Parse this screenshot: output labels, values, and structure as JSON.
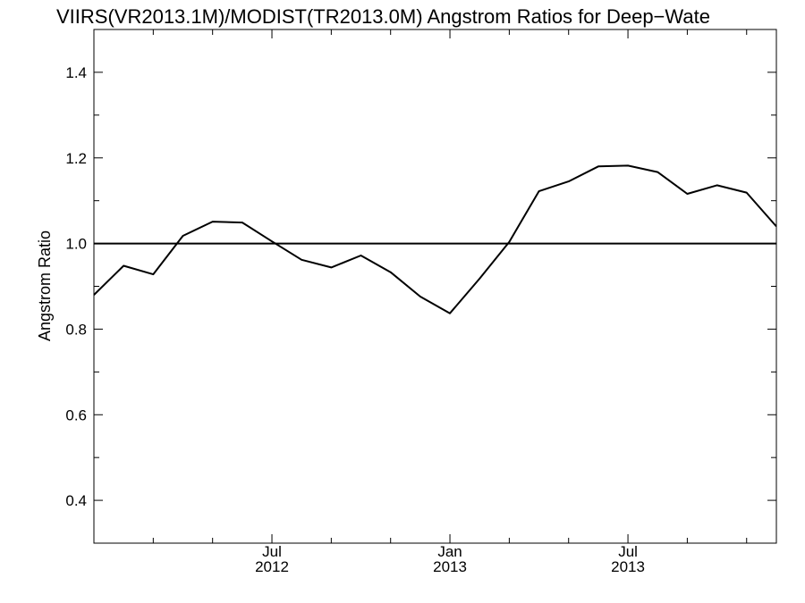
{
  "chart_data": {
    "type": "line",
    "title": "VIIRS(VR2013.1M)/MODIST(TR2013.0M)  Angstrom Ratios for Deep−Wate",
    "xlabel": "",
    "ylabel": "Angstrom Ratio",
    "xlim": [
      "2012-01-01",
      "2013-12-01"
    ],
    "ylim": [
      0.3,
      1.5
    ],
    "grid": false,
    "x_tick_labels": [
      {
        "x": "2012-07-01",
        "line1": "Jul",
        "line2": "2012"
      },
      {
        "x": "2013-01-01",
        "line1": "Jan",
        "line2": "2013"
      },
      {
        "x": "2013-07-01",
        "line1": "Jul",
        "line2": "2013"
      }
    ],
    "y_tick_labels": [
      "0.4",
      "0.6",
      "0.8",
      "1.0",
      "1.2",
      "1.4"
    ],
    "reference_line": {
      "y": 1.0
    },
    "series": [
      {
        "color": "#000000",
        "points": [
          {
            "x": "2012-01-01",
            "y": 0.88
          },
          {
            "x": "2012-02-01",
            "y": 0.948
          },
          {
            "x": "2012-03-01",
            "y": 0.928
          },
          {
            "x": "2012-04-01",
            "y": 1.018
          },
          {
            "x": "2012-05-01",
            "y": 1.051
          },
          {
            "x": "2012-06-01",
            "y": 1.049
          },
          {
            "x": "2012-07-01",
            "y": 1.005
          },
          {
            "x": "2012-08-01",
            "y": 0.962
          },
          {
            "x": "2012-09-01",
            "y": 0.944
          },
          {
            "x": "2012-10-01",
            "y": 0.972
          },
          {
            "x": "2012-11-01",
            "y": 0.933
          },
          {
            "x": "2012-12-01",
            "y": 0.876
          },
          {
            "x": "2013-01-01",
            "y": 0.837
          },
          {
            "x": "2013-02-01",
            "y": 0.918
          },
          {
            "x": "2013-03-01",
            "y": 1.004
          },
          {
            "x": "2013-04-01",
            "y": 1.122
          },
          {
            "x": "2013-05-01",
            "y": 1.145
          },
          {
            "x": "2013-06-01",
            "y": 1.18
          },
          {
            "x": "2013-07-01",
            "y": 1.182
          },
          {
            "x": "2013-08-01",
            "y": 1.167
          },
          {
            "x": "2013-09-01",
            "y": 1.116
          },
          {
            "x": "2013-10-01",
            "y": 1.136
          },
          {
            "x": "2013-11-01",
            "y": 1.119
          },
          {
            "x": "2013-12-01",
            "y": 1.04
          }
        ]
      }
    ]
  }
}
